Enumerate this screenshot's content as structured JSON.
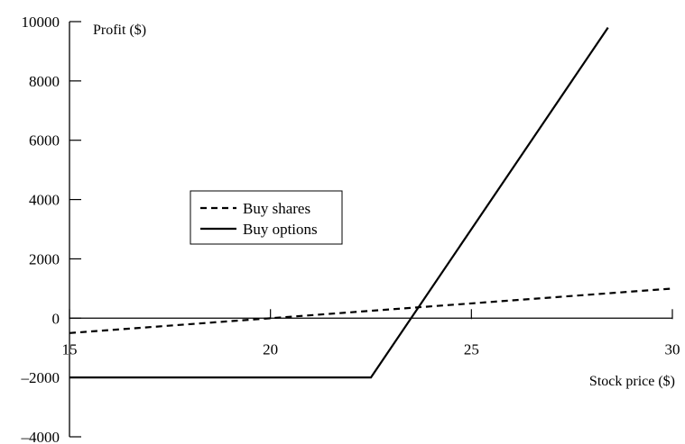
{
  "chart_data": {
    "type": "line",
    "title": "",
    "xlabel": "Stock price ($)",
    "ylabel": "Profit ($)",
    "xlim": [
      15,
      30
    ],
    "ylim": [
      -4000,
      10000
    ],
    "x_ticks": [
      15,
      20,
      25,
      30
    ],
    "x_tick_labels": [
      "15",
      "20",
      "25",
      "30"
    ],
    "y_ticks": [
      -4000,
      -2000,
      0,
      2000,
      4000,
      6000,
      8000,
      10000
    ],
    "y_tick_labels": [
      "–4000",
      "–2000",
      "0",
      "2000",
      "4000",
      "6000",
      "8000",
      "10000"
    ],
    "grid": false,
    "legend_position": "center-left",
    "series": [
      {
        "name": "Buy shares",
        "style": "dashed",
        "color": "#000000",
        "points": [
          [
            15,
            -500
          ],
          [
            30,
            1000
          ]
        ]
      },
      {
        "name": "Buy options",
        "style": "solid",
        "color": "#000000",
        "points": [
          [
            15,
            -2000
          ],
          [
            22.5,
            -2000
          ],
          [
            28.4,
            9800
          ]
        ]
      }
    ]
  }
}
